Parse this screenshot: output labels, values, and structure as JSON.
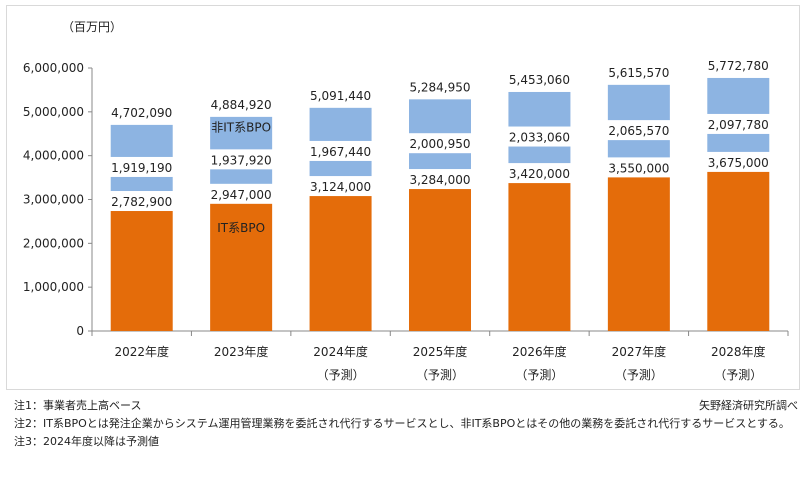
{
  "chart_data": {
    "type": "bar",
    "stacked": true,
    "unit_label": "（百万円）",
    "categories": [
      "2022年度",
      "2023年度",
      "2024年度",
      "2025年度",
      "2026年度",
      "2027年度",
      "2028年度"
    ],
    "category_sub": [
      "",
      "",
      "（予測）",
      "（予測）",
      "（予測）",
      "（予測）",
      "（予測）"
    ],
    "totals": [
      "4,702,090",
      "4,884,920",
      "5,091,440",
      "5,284,950",
      "5,453,060",
      "5,615,570",
      "5,772,780"
    ],
    "series": [
      {
        "name": "IT系BPO",
        "color": "#e46c0a",
        "values": [
          2782900,
          2947000,
          3124000,
          3284000,
          3420000,
          3550000,
          3675000
        ],
        "labels": [
          "2,782,900",
          "2,947,000",
          "3,124,000",
          "3,284,000",
          "3,420,000",
          "3,550,000",
          "3,675,000"
        ]
      },
      {
        "name": "非IT系BPO",
        "color": "#8db4e2",
        "values": [
          1919190,
          1937920,
          1967440,
          2000950,
          2033060,
          2065570,
          2097780
        ],
        "labels": [
          "1,919,190",
          "1,937,920",
          "1,967,440",
          "2,000,950",
          "2,033,060",
          "2,065,570",
          "2,097,780"
        ]
      }
    ],
    "ylim": [
      0,
      6000000
    ],
    "yticks": [
      "0",
      "1,000,000",
      "2,000,000",
      "3,000,000",
      "4,000,000",
      "5,000,000",
      "6,000,000"
    ],
    "grid": false,
    "legend": "inline labels on 2023年度 bars"
  },
  "notes": {
    "note1": "注1：事業者売上高ベース",
    "note2": "注2：IT系BPOとは発注企業からシステム運用管理業務を委託され代行するサービスとし、非IT系BPOとはその他の業務を委託され代行するサービスとする。",
    "note3": "注3：2024年度以降は予測値",
    "source": "矢野経済研究所調べ"
  }
}
